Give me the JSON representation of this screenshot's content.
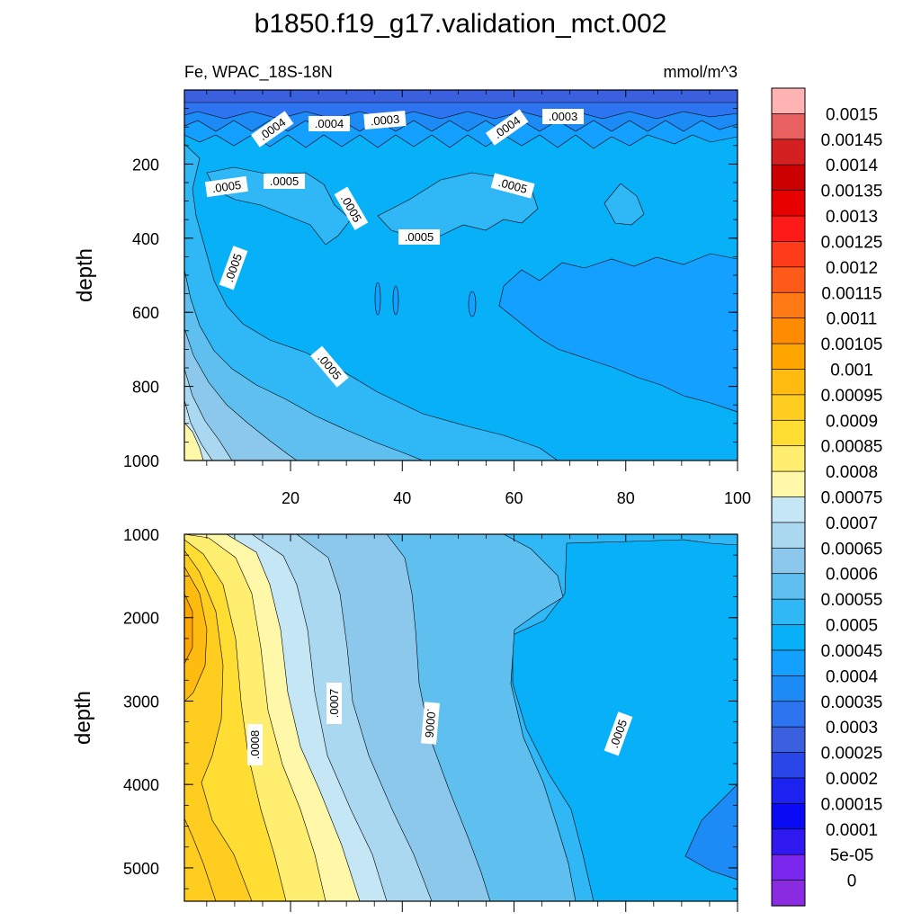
{
  "chart_data": {
    "type": "contour",
    "title": "b1850.f19_g17.validation_mct.002",
    "left_subtitle": "Fe, WPAC_18S-18N",
    "right_subtitle": "mmol/m^3",
    "panels": [
      {
        "ylabel": "depth",
        "y_reversed": true,
        "ylim": [
          0,
          1000
        ],
        "xlim": [
          1,
          100
        ],
        "y_ticks": [
          200,
          400,
          600,
          800,
          1000
        ],
        "x_ticks": [
          20,
          40,
          60,
          80,
          100
        ],
        "x_tick_labels_shown": true,
        "contour_labels": [
          ".0004",
          ".0004",
          ".0003",
          ".0004",
          ".0003",
          ".0005",
          ".0005",
          ".0005",
          ".0005",
          ".0005",
          ".0005",
          ".0005"
        ]
      },
      {
        "ylabel": "depth",
        "y_reversed": true,
        "ylim": [
          1000,
          5400
        ],
        "xlim": [
          1,
          100
        ],
        "y_ticks": [
          1000,
          2000,
          3000,
          4000,
          5000
        ],
        "x_ticks": [
          20,
          40,
          60,
          80,
          100
        ],
        "x_tick_labels_shown": false,
        "contour_labels": [
          ".0008",
          ".0007",
          ".0006",
          ".0005"
        ]
      }
    ],
    "colorbar": {
      "labels": [
        "0.0015",
        "0.00145",
        "0.0014",
        "0.00135",
        "0.0013",
        "0.00125",
        "0.0012",
        "0.00115",
        "0.0011",
        "0.00105",
        "0.001",
        "0.00095",
        "0.0009",
        "0.00085",
        "0.0008",
        "0.00075",
        "0.0007",
        "0.00065",
        "0.0006",
        "0.00055",
        "0.0005",
        "0.00045",
        "0.0004",
        "0.00035",
        "0.0003",
        "0.00025",
        "0.0002",
        "0.00015",
        "0.0001",
        "5e-05",
        "0"
      ],
      "colors": [
        "#ffb3b3",
        "#e86060",
        "#d42020",
        "#cc0000",
        "#e60000",
        "#ff1a1a",
        "#ff3b1a",
        "#ff5a1a",
        "#ff7a14",
        "#ff8c00",
        "#ffa500",
        "#ffbb10",
        "#ffcc20",
        "#ffdd33",
        "#ffee70",
        "#fff8a8",
        "#c4e6f5",
        "#a9d8f0",
        "#8cc8ec",
        "#5fc0f0",
        "#2fb8f5",
        "#08b0f8",
        "#14a0ff",
        "#1c8bf5",
        "#2c74f0",
        "#3a60e0",
        "#2a45e8",
        "#1c22f0",
        "#0a0af5",
        "#3018f0",
        "#7a28ee",
        "#8a2be2"
      ]
    }
  }
}
